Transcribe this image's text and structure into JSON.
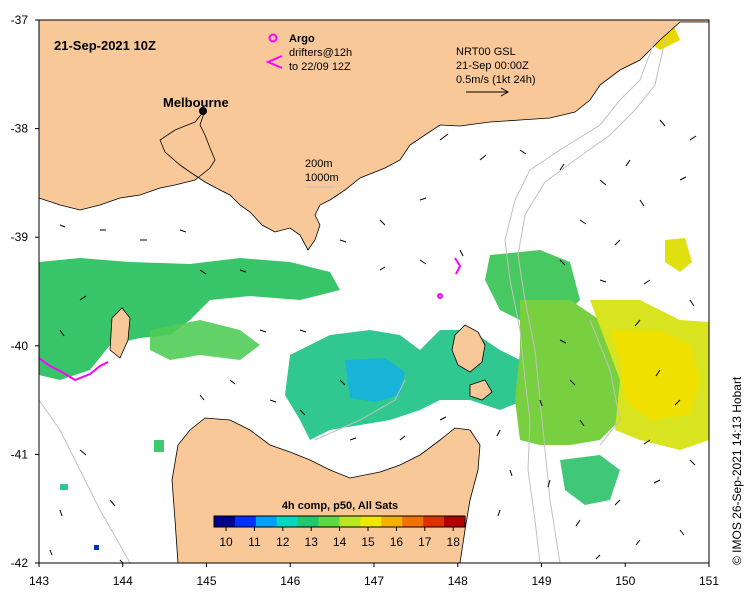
{
  "header": {
    "date_label": "21-Sep-2021 10Z",
    "argo_label": "Argo",
    "drifters_line1": "drifters@12h",
    "drifters_line2": "to 22/09 12Z",
    "nrt_line1": "NRT00 GSL",
    "nrt_line2": "21-Sep 00:00Z",
    "nrt_line3": "0.5m/s (1kt 24h)",
    "city": "Melbourne",
    "depth_200": "200m",
    "depth_1000": "1000m"
  },
  "colorbar": {
    "title": "4h comp, p50, All Sats",
    "ticks": [
      "10",
      "11",
      "12",
      "13",
      "14",
      "15",
      "16",
      "17",
      "18"
    ],
    "colors": [
      "#00008b",
      "#0030ff",
      "#00a0ff",
      "#00d8c0",
      "#20c870",
      "#60d840",
      "#b8e820",
      "#f0e800",
      "#f8b000",
      "#f07000",
      "#e03000",
      "#b00000"
    ]
  },
  "axes": {
    "x_ticks": [
      "143",
      "144",
      "145",
      "146",
      "147",
      "148",
      "149",
      "150",
      "151"
    ],
    "y_ticks": [
      "-37",
      "-38",
      "-39",
      "-40",
      "-41",
      "-42"
    ]
  },
  "credit": "© IMOS 26-Sep-2021 14:13 Hobart",
  "colors": {
    "land": "#f8c898",
    "argo": "#ff00ff",
    "isobath": "#c0c0c0"
  }
}
